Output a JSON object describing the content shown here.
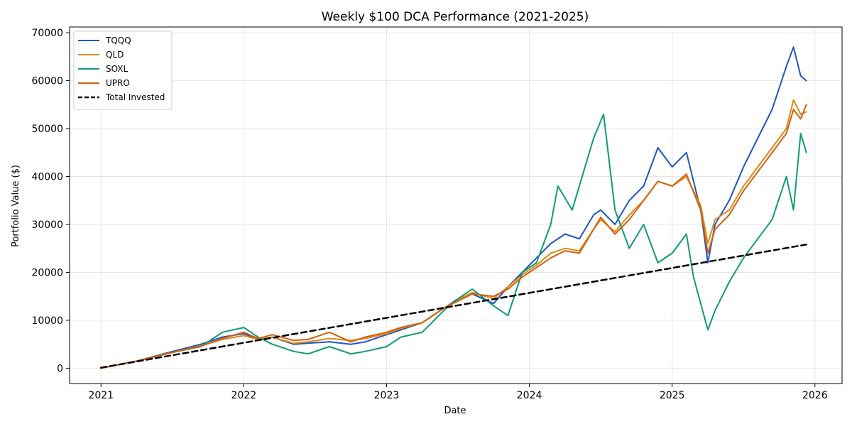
{
  "chart_data": {
    "type": "line",
    "title": "Weekly $100 DCA Performance (2021-2025)",
    "xlabel": "Date",
    "ylabel": "Portfolio Value ($)",
    "xlim": [
      2020.78,
      2026.19
    ],
    "ylim": [
      -3200,
      71200
    ],
    "x_ticks": [
      2021,
      2022,
      2023,
      2024,
      2025,
      2026
    ],
    "x_tick_labels": [
      "2021",
      "2022",
      "2023",
      "2024",
      "2025",
      "2026"
    ],
    "y_ticks": [
      0,
      10000,
      20000,
      30000,
      40000,
      50000,
      60000,
      70000
    ],
    "y_tick_labels": [
      "0",
      "10000",
      "20000",
      "30000",
      "40000",
      "50000",
      "60000",
      "70000"
    ],
    "grid": true,
    "legend_position": "top-left",
    "series": [
      {
        "name": "TQQQ",
        "color": "#1f55c4",
        "style": "solid",
        "x": [
          2021.0,
          2021.25,
          2021.5,
          2021.7,
          2021.85,
          2022.0,
          2022.1,
          2022.2,
          2022.35,
          2022.45,
          2022.6,
          2022.75,
          2022.85,
          2023.0,
          2023.1,
          2023.25,
          2023.4,
          2023.5,
          2023.6,
          2023.75,
          2023.85,
          2023.95,
          2024.05,
          2024.15,
          2024.25,
          2024.35,
          2024.45,
          2024.5,
          2024.6,
          2024.7,
          2024.8,
          2024.9,
          2025.0,
          2025.1,
          2025.2,
          2025.25,
          2025.3,
          2025.4,
          2025.5,
          2025.6,
          2025.7,
          2025.8,
          2025.85,
          2025.9,
          2025.94
        ],
        "values": [
          0,
          1500,
          3500,
          5000,
          6500,
          7200,
          6000,
          6500,
          5000,
          5200,
          5500,
          5000,
          5500,
          7000,
          8000,
          9500,
          12500,
          14500,
          15500,
          13500,
          17000,
          20000,
          23000,
          26000,
          28000,
          27000,
          32000,
          33000,
          30000,
          35000,
          38000,
          46000,
          42000,
          45000,
          33000,
          22000,
          30000,
          35000,
          42000,
          48000,
          54000,
          63000,
          67000,
          61000,
          60000
        ]
      },
      {
        "name": "QLD",
        "color": "#dd8a1a",
        "style": "solid",
        "x": [
          2021.0,
          2021.25,
          2021.5,
          2021.7,
          2021.85,
          2022.0,
          2022.1,
          2022.2,
          2022.35,
          2022.45,
          2022.6,
          2022.75,
          2022.85,
          2023.0,
          2023.1,
          2023.25,
          2023.4,
          2023.5,
          2023.6,
          2023.75,
          2023.85,
          2023.95,
          2024.05,
          2024.15,
          2024.25,
          2024.35,
          2024.45,
          2024.5,
          2024.6,
          2024.7,
          2024.8,
          2024.9,
          2025.0,
          2025.1,
          2025.2,
          2025.25,
          2025.3,
          2025.4,
          2025.5,
          2025.6,
          2025.7,
          2025.8,
          2025.85,
          2025.9,
          2025.94
        ],
        "values": [
          0,
          1500,
          3300,
          4700,
          6000,
          6800,
          6000,
          6500,
          5200,
          5500,
          6200,
          5800,
          6200,
          7200,
          8300,
          9500,
          12500,
          14300,
          15800,
          14500,
          17000,
          19500,
          21500,
          24000,
          25000,
          24500,
          29000,
          31000,
          28500,
          32000,
          35000,
          39000,
          38000,
          40000,
          34000,
          26000,
          31000,
          33000,
          38000,
          42000,
          46000,
          50000,
          56000,
          53000,
          53500
        ]
      },
      {
        "name": "SOXL",
        "color": "#0f9b73",
        "style": "solid",
        "x": [
          2021.0,
          2021.25,
          2021.5,
          2021.7,
          2021.85,
          2022.0,
          2022.1,
          2022.2,
          2022.35,
          2022.45,
          2022.6,
          2022.75,
          2022.85,
          2023.0,
          2023.1,
          2023.25,
          2023.4,
          2023.5,
          2023.6,
          2023.75,
          2023.85,
          2023.95,
          2024.05,
          2024.15,
          2024.2,
          2024.3,
          2024.4,
          2024.45,
          2024.52,
          2024.6,
          2024.7,
          2024.8,
          2024.9,
          2025.0,
          2025.1,
          2025.15,
          2025.25,
          2025.3,
          2025.4,
          2025.5,
          2025.6,
          2025.7,
          2025.8,
          2025.85,
          2025.9,
          2025.94
        ],
        "values": [
          0,
          1500,
          3300,
          4500,
          7500,
          8500,
          6500,
          5000,
          3500,
          3000,
          4500,
          3000,
          3500,
          4500,
          6500,
          7500,
          12000,
          14500,
          16500,
          13000,
          11000,
          20000,
          22000,
          30000,
          38000,
          33000,
          43000,
          48000,
          53000,
          33000,
          25000,
          30000,
          22000,
          24000,
          28000,
          19000,
          8000,
          12000,
          18000,
          23000,
          27000,
          31000,
          40000,
          33000,
          49000,
          45000
        ]
      },
      {
        "name": "UPRO",
        "color": "#d45f0a",
        "style": "solid",
        "x": [
          2021.0,
          2021.25,
          2021.5,
          2021.7,
          2021.85,
          2022.0,
          2022.1,
          2022.2,
          2022.35,
          2022.45,
          2022.6,
          2022.75,
          2022.85,
          2023.0,
          2023.1,
          2023.25,
          2023.4,
          2023.5,
          2023.6,
          2023.75,
          2023.85,
          2023.95,
          2024.05,
          2024.15,
          2024.25,
          2024.35,
          2024.45,
          2024.5,
          2024.6,
          2024.7,
          2024.8,
          2024.9,
          2025.0,
          2025.1,
          2025.2,
          2025.25,
          2025.3,
          2025.4,
          2025.5,
          2025.6,
          2025.7,
          2025.8,
          2025.85,
          2025.9,
          2025.94
        ],
        "values": [
          0,
          1500,
          3300,
          4600,
          6200,
          7500,
          6200,
          7000,
          5800,
          6000,
          7500,
          5500,
          6500,
          7500,
          8500,
          9500,
          12500,
          14000,
          15500,
          15000,
          16500,
          19000,
          21000,
          23000,
          24500,
          24000,
          29000,
          31500,
          28000,
          31000,
          35000,
          39000,
          38000,
          40500,
          33000,
          24000,
          29000,
          32000,
          37000,
          41000,
          45000,
          49000,
          54000,
          52000,
          55000
        ]
      },
      {
        "name": "Total Invested",
        "color": "#000000",
        "style": "dashed",
        "x": [
          2021.0,
          2025.94
        ],
        "values": [
          100,
          25800
        ]
      }
    ]
  }
}
